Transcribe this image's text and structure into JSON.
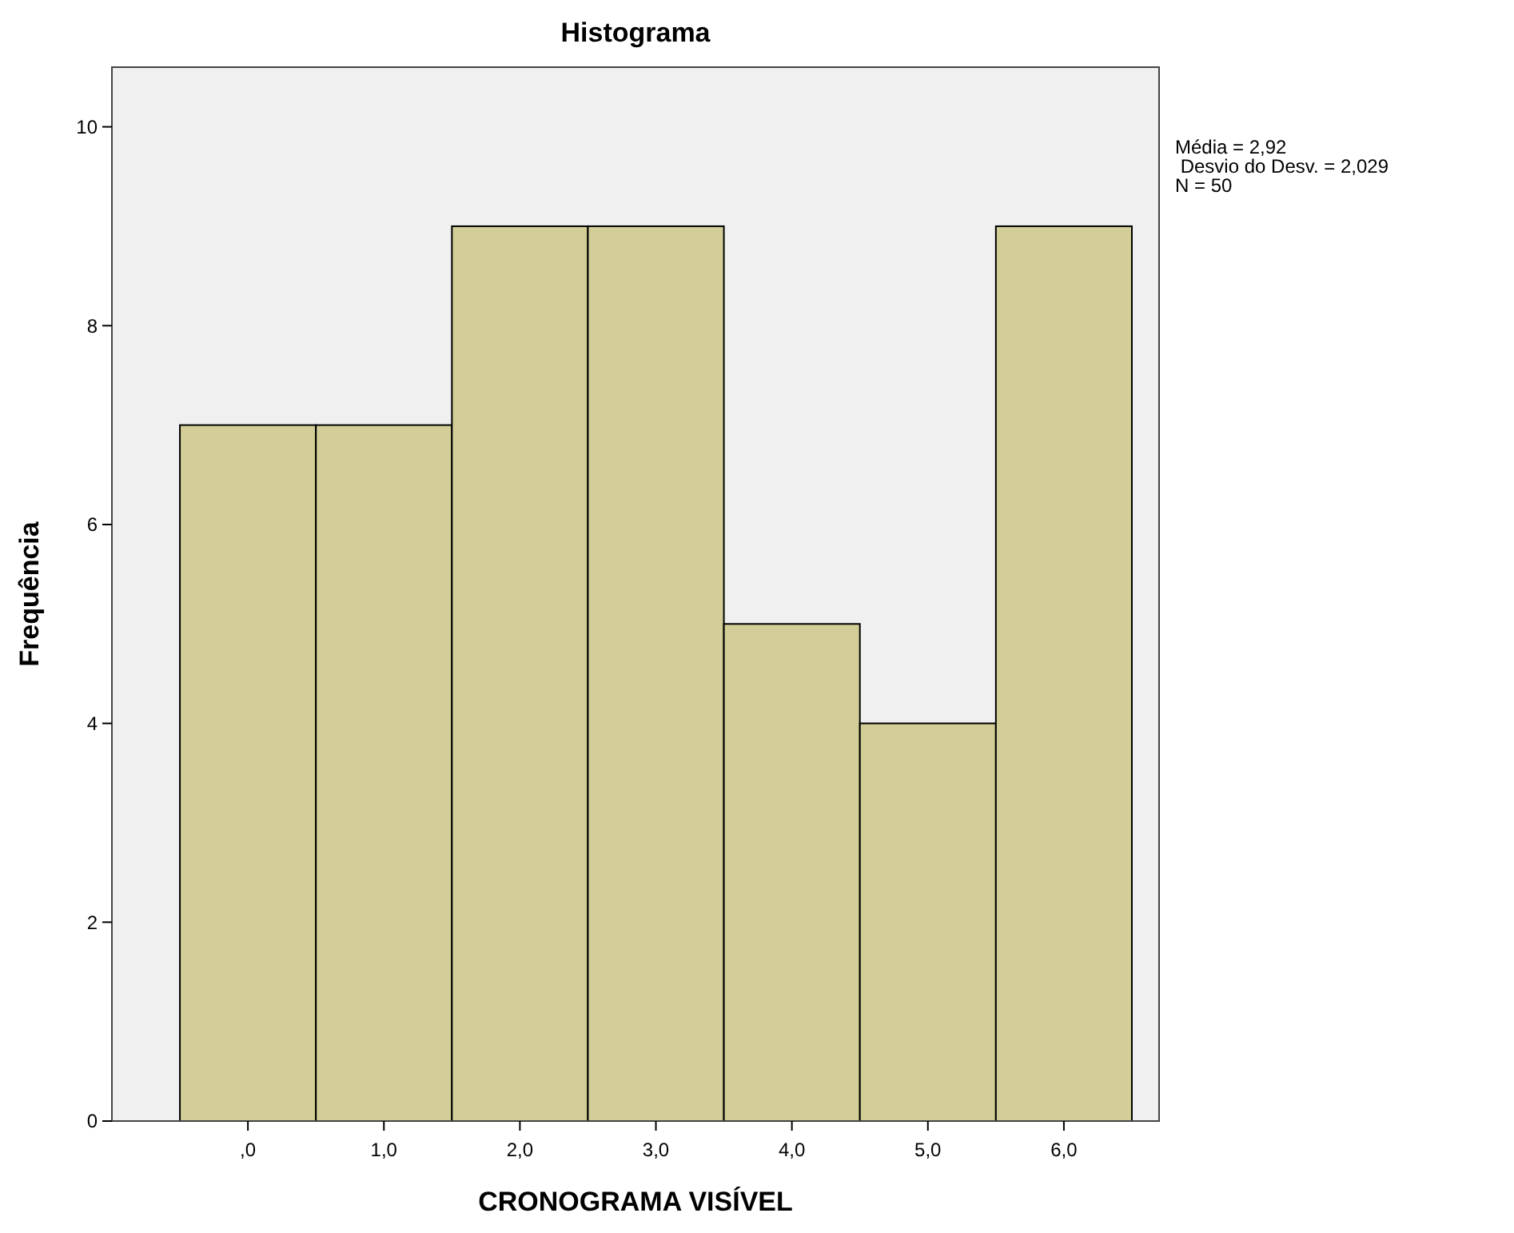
{
  "chart_data": {
    "type": "histogram",
    "title": "Histograma",
    "xlabel": "CRONOGRAMA VISÍVEL",
    "ylabel": "Frequência",
    "bins": [
      -0.5,
      0.5,
      1.5,
      2.5,
      3.5,
      4.5,
      5.5,
      6.5
    ],
    "values": [
      7,
      7,
      9,
      9,
      5,
      4,
      9
    ],
    "color": "#d3ce97",
    "xlim": [
      -1,
      6.7
    ],
    "xticks": [
      {
        "value": 0,
        "label": ",0"
      },
      {
        "value": 1,
        "label": "1,0"
      },
      {
        "value": 2,
        "label": "2,0"
      },
      {
        "value": 3,
        "label": "3,0"
      },
      {
        "value": 4,
        "label": "4,0"
      },
      {
        "value": 5,
        "label": "5,0"
      },
      {
        "value": 6,
        "label": "6,0"
      }
    ],
    "ylim": [
      0,
      10.6
    ],
    "yticks": [
      0,
      2,
      4,
      6,
      8,
      10
    ],
    "grid": false,
    "annotations": [
      "Média = 2,92",
      " Desvio do Desv. = 2,029",
      "N = 50"
    ]
  }
}
